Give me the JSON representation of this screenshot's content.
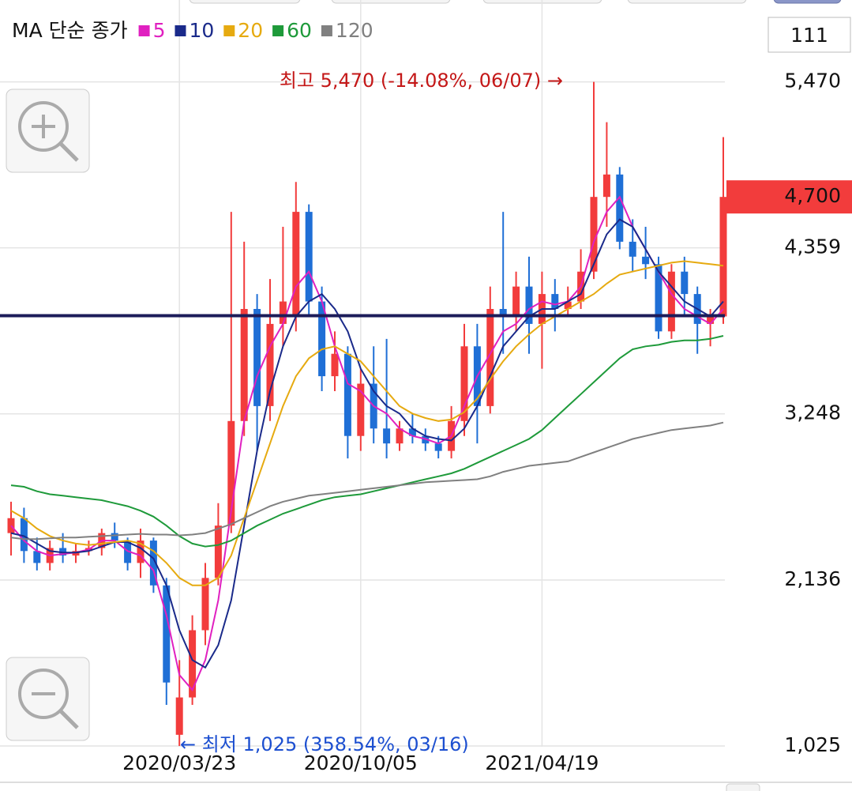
{
  "chart_data": {
    "type": "candlestick",
    "legend_title": "MA 단순 종가",
    "counter": "111",
    "categories": [
      null,
      null,
      null,
      null,
      null,
      null,
      null,
      null,
      null,
      null,
      null,
      null,
      null,
      "2020/03/23",
      null,
      null,
      null,
      null,
      null,
      null,
      null,
      null,
      null,
      null,
      null,
      null,
      null,
      "2020/10/05",
      null,
      null,
      null,
      null,
      null,
      null,
      null,
      null,
      null,
      null,
      null,
      null,
      null,
      "2021/04/19",
      null,
      null,
      null,
      null,
      null,
      null,
      null,
      null,
      null,
      null,
      null,
      null,
      null,
      null
    ],
    "ylim": [
      1020,
      5690
    ],
    "yticks": [
      {
        "value": 1025,
        "label": "1,025"
      },
      {
        "value": 2136,
        "label": "2,136"
      },
      {
        "value": 3248,
        "label": "3,248"
      },
      {
        "value": 4359,
        "label": "4,359"
      },
      {
        "value": 5470,
        "label": "5,470"
      }
    ],
    "grid": true,
    "up_color": "#f23c3c",
    "down_color": "#1f6fd6",
    "candles": {
      "open": [
        2450,
        2550,
        2330,
        2250,
        2350,
        2300,
        2330,
        2350,
        2450,
        2400,
        2250,
        2400,
        2100,
        1100,
        1350,
        1800,
        2150,
        2500,
        3200,
        3950,
        3300,
        3850,
        3900,
        4600,
        4000,
        3500,
        3650,
        3100,
        3450,
        3150,
        3050,
        3150,
        3100,
        3050,
        3000,
        3200,
        3700,
        3300,
        3950,
        3900,
        4100,
        3850,
        4050,
        3950,
        4000,
        4200,
        4700,
        4850,
        4400,
        4300,
        4250,
        3800,
        4200,
        4050,
        3850,
        3900
      ],
      "high": [
        2660,
        2620,
        2420,
        2400,
        2450,
        2380,
        2400,
        2480,
        2520,
        2420,
        2480,
        2420,
        2150,
        1600,
        1900,
        2250,
        2650,
        4600,
        4400,
        4050,
        4150,
        4500,
        4800,
        4650,
        4100,
        3800,
        3700,
        3550,
        3700,
        3750,
        3200,
        3250,
        3150,
        3100,
        3300,
        3850,
        3850,
        4100,
        4600,
        4200,
        4300,
        4200,
        4150,
        4100,
        4350,
        5470,
        5200,
        4900,
        4550,
        4500,
        4300,
        4250,
        4300,
        4100,
        3950,
        5100
      ],
      "low": [
        2300,
        2250,
        2200,
        2200,
        2250,
        2250,
        2300,
        2300,
        2350,
        2200,
        2150,
        2050,
        1300,
        1025,
        1300,
        1700,
        2100,
        2450,
        3100,
        3000,
        3200,
        3700,
        3800,
        3900,
        3400,
        3400,
        2950,
        3000,
        3050,
        2950,
        3000,
        3050,
        3000,
        2950,
        2950,
        3100,
        3050,
        3250,
        3650,
        3800,
        3650,
        3550,
        3800,
        3900,
        3950,
        4150,
        4500,
        4350,
        4200,
        4150,
        3750,
        3750,
        3900,
        3650,
        3700,
        3850
      ],
      "close": [
        2550,
        2330,
        2250,
        2350,
        2300,
        2330,
        2350,
        2450,
        2400,
        2250,
        2400,
        2100,
        1450,
        1350,
        1800,
        2150,
        2500,
        3200,
        3950,
        3300,
        3850,
        4000,
        4600,
        4000,
        3500,
        3650,
        3100,
        3450,
        3150,
        3050,
        3150,
        3100,
        3050,
        3000,
        3200,
        3700,
        3300,
        3950,
        3900,
        4100,
        3850,
        4050,
        3950,
        4000,
        4200,
        4700,
        4850,
        4400,
        4300,
        4250,
        3800,
        4200,
        4050,
        3850,
        3900,
        4700
      ]
    },
    "series": [
      {
        "name": "5",
        "color": "#e020c0",
        "values": [
          2500,
          2400,
          2330,
          2300,
          2310,
          2320,
          2340,
          2400,
          2400,
          2330,
          2300,
          2200,
          1900,
          1500,
          1400,
          1600,
          2000,
          2600,
          3200,
          3500,
          3700,
          3850,
          4100,
          4200,
          4000,
          3700,
          3450,
          3400,
          3300,
          3250,
          3150,
          3100,
          3080,
          3050,
          3100,
          3300,
          3500,
          3650,
          3800,
          3850,
          3950,
          4000,
          3980,
          4000,
          4100,
          4400,
          4600,
          4700,
          4500,
          4350,
          4200,
          4050,
          3950,
          3900,
          3850,
          3950
        ]
      },
      {
        "name": "10",
        "color": "#1a2a8a",
        "values": [
          2450,
          2430,
          2380,
          2330,
          2320,
          2320,
          2330,
          2360,
          2390,
          2390,
          2350,
          2280,
          2100,
          1800,
          1600,
          1550,
          1700,
          2000,
          2500,
          3000,
          3400,
          3700,
          3900,
          4000,
          4050,
          3950,
          3800,
          3550,
          3400,
          3300,
          3250,
          3150,
          3100,
          3080,
          3070,
          3150,
          3300,
          3500,
          3700,
          3800,
          3900,
          3950,
          3950,
          4000,
          4050,
          4250,
          4450,
          4550,
          4500,
          4350,
          4200,
          4100,
          4000,
          3950,
          3900,
          4000
        ]
      },
      {
        "name": "20",
        "color": "#e6aa10",
        "values": [
          2600,
          2550,
          2480,
          2430,
          2400,
          2380,
          2370,
          2380,
          2390,
          2400,
          2380,
          2330,
          2250,
          2150,
          2100,
          2100,
          2150,
          2300,
          2550,
          2800,
          3050,
          3300,
          3500,
          3620,
          3680,
          3700,
          3650,
          3600,
          3500,
          3400,
          3300,
          3250,
          3220,
          3200,
          3210,
          3260,
          3350,
          3480,
          3600,
          3700,
          3780,
          3850,
          3900,
          3950,
          4000,
          4050,
          4120,
          4180,
          4200,
          4220,
          4240,
          4260,
          4270,
          4260,
          4250,
          4240
        ]
      },
      {
        "name": "60",
        "color": "#1e9a3a",
        "values": [
          2770,
          2760,
          2730,
          2710,
          2700,
          2690,
          2680,
          2670,
          2650,
          2630,
          2600,
          2560,
          2500,
          2430,
          2380,
          2360,
          2370,
          2400,
          2450,
          2500,
          2540,
          2580,
          2610,
          2640,
          2670,
          2690,
          2700,
          2710,
          2730,
          2750,
          2770,
          2790,
          2810,
          2830,
          2850,
          2880,
          2920,
          2960,
          3000,
          3040,
          3080,
          3140,
          3220,
          3300,
          3380,
          3460,
          3540,
          3620,
          3680,
          3700,
          3710,
          3730,
          3740,
          3740,
          3750,
          3770
        ]
      },
      {
        "name": "120",
        "color": "#808080",
        "values": [
          2420,
          2410,
          2410,
          2415,
          2420,
          2420,
          2425,
          2430,
          2435,
          2440,
          2445,
          2440,
          2440,
          2435,
          2440,
          2450,
          2480,
          2510,
          2550,
          2590,
          2630,
          2660,
          2680,
          2700,
          2710,
          2720,
          2730,
          2740,
          2750,
          2760,
          2770,
          2780,
          2790,
          2795,
          2800,
          2805,
          2810,
          2830,
          2860,
          2880,
          2900,
          2910,
          2920,
          2930,
          2960,
          2990,
          3020,
          3050,
          3080,
          3100,
          3120,
          3140,
          3150,
          3160,
          3170,
          3190
        ]
      }
    ],
    "reference_line": {
      "value": 3905,
      "color": "#1c1c5a"
    },
    "last_price": {
      "value": 4700,
      "label": "4,700",
      "color": "#f23c3c"
    },
    "annotations": [
      {
        "text": "최고 5,470 (-14.08%, 06/07) →",
        "color": "#c41818"
      },
      {
        "text": "← 최저 1,025 (358.54%, 03/16)",
        "color": "#1c4fd0"
      }
    ]
  }
}
